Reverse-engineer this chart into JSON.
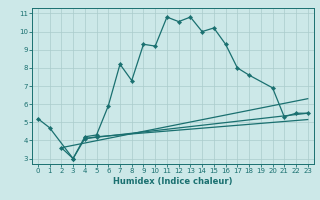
{
  "title": "",
  "xlabel": "Humidex (Indice chaleur)",
  "background_color": "#cce8e8",
  "grid_color": "#aacccc",
  "line_color": "#1a7070",
  "xlim": [
    -0.5,
    23.5
  ],
  "ylim": [
    2.7,
    11.3
  ],
  "xticks": [
    0,
    1,
    2,
    3,
    4,
    5,
    6,
    7,
    8,
    9,
    10,
    11,
    12,
    13,
    14,
    15,
    16,
    17,
    18,
    19,
    20,
    21,
    22,
    23
  ],
  "yticks": [
    3,
    4,
    5,
    6,
    7,
    8,
    9,
    10,
    11
  ],
  "line1_x": [
    0,
    1,
    3,
    4,
    5,
    6,
    7,
    8,
    9,
    10,
    11,
    12,
    13,
    14,
    15,
    16,
    17,
    18,
    20,
    21,
    22,
    23
  ],
  "line1_y": [
    5.2,
    4.7,
    3.0,
    4.2,
    4.3,
    5.9,
    8.2,
    7.3,
    9.3,
    9.2,
    10.8,
    10.55,
    10.8,
    10.0,
    10.2,
    9.3,
    8.0,
    7.6,
    6.9,
    5.3,
    5.5,
    5.5
  ],
  "line2_x": [
    2,
    3,
    4,
    5
  ],
  "line2_y": [
    3.6,
    3.0,
    4.1,
    4.2
  ],
  "line3_x": [
    2,
    23
  ],
  "line3_y": [
    3.6,
    6.3
  ],
  "line4_x": [
    4,
    23
  ],
  "line4_y": [
    4.1,
    5.5
  ],
  "line5_x": [
    5,
    23
  ],
  "line5_y": [
    4.2,
    5.15
  ]
}
